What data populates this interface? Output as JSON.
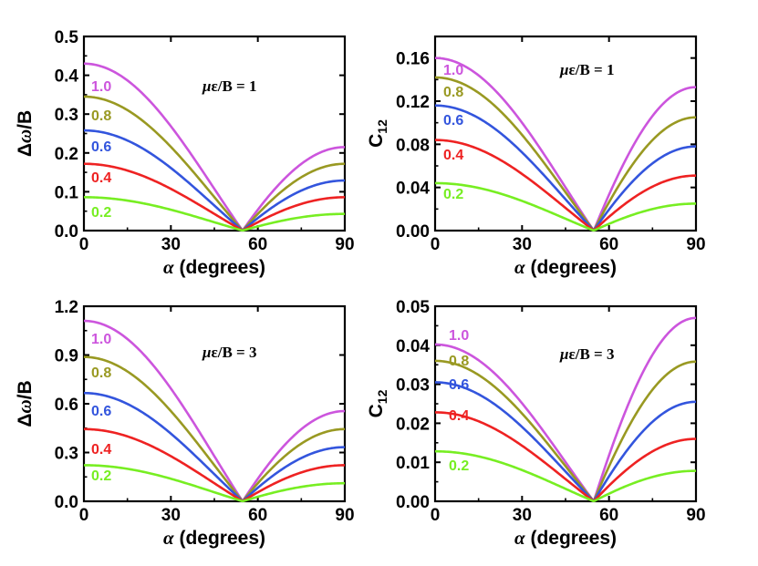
{
  "chart_data": [
    {
      "id": "top-left",
      "type": "line",
      "ylabel": "Δω/B",
      "xlabel_symbol": "α",
      "xlabel_text": " (degrees)",
      "annotation": "με/B = 1",
      "xlim": [
        0,
        90
      ],
      "ylim": [
        0,
        0.5
      ],
      "xticks": [
        "0",
        "30",
        "60",
        "90"
      ],
      "yticks": [
        "0.0",
        "0.1",
        "0.2",
        "0.3",
        "0.4",
        "0.5"
      ],
      "zero_x": 54.7,
      "series": [
        {
          "name": "1.0",
          "color": "#cc55dd",
          "start": 0.43,
          "end": 0.215
        },
        {
          "name": "0.8",
          "color": "#999922",
          "start": 0.345,
          "end": 0.172
        },
        {
          "name": "0.6",
          "color": "#3355dd",
          "start": 0.258,
          "end": 0.129
        },
        {
          "name": "0.4",
          "color": "#ee2222",
          "start": 0.172,
          "end": 0.086
        },
        {
          "name": "0.2",
          "color": "#77ee22",
          "start": 0.086,
          "end": 0.043
        }
      ]
    },
    {
      "id": "top-right",
      "type": "line",
      "ylabel": "C",
      "ylabel_sub": "12",
      "xlabel_symbol": "α",
      "xlabel_text": " (degrees)",
      "annotation": "με/B = 1",
      "xlim": [
        0,
        90
      ],
      "ylim": [
        0,
        0.18
      ],
      "xticks": [
        "0",
        "30",
        "60",
        "90"
      ],
      "yticks": [
        "0.00",
        "0.04",
        "0.08",
        "0.12",
        "0.16"
      ],
      "zero_x": 54.7,
      "series": [
        {
          "name": "1.0",
          "color": "#cc55dd",
          "start": 0.16,
          "end": 0.133
        },
        {
          "name": "0.8",
          "color": "#999922",
          "start": 0.142,
          "end": 0.105
        },
        {
          "name": "0.6",
          "color": "#3355dd",
          "start": 0.116,
          "end": 0.078
        },
        {
          "name": "0.4",
          "color": "#ee2222",
          "start": 0.084,
          "end": 0.051
        },
        {
          "name": "0.2",
          "color": "#77ee22",
          "start": 0.044,
          "end": 0.025
        }
      ]
    },
    {
      "id": "bottom-left",
      "type": "line",
      "ylabel": "Δω/B",
      "xlabel_symbol": "α",
      "xlabel_text": " (degrees)",
      "annotation": "με/B = 3",
      "xlim": [
        0,
        90
      ],
      "ylim": [
        0,
        1.2
      ],
      "xticks": [
        "0",
        "30",
        "60",
        "90"
      ],
      "yticks": [
        "0.0",
        "0.3",
        "0.6",
        "0.9",
        "1.2"
      ],
      "zero_x": 54.7,
      "series": [
        {
          "name": "1.0",
          "color": "#cc55dd",
          "start": 1.11,
          "end": 0.555
        },
        {
          "name": "0.8",
          "color": "#999922",
          "start": 0.888,
          "end": 0.444
        },
        {
          "name": "0.6",
          "color": "#3355dd",
          "start": 0.666,
          "end": 0.333
        },
        {
          "name": "0.4",
          "color": "#ee2222",
          "start": 0.444,
          "end": 0.222
        },
        {
          "name": "0.2",
          "color": "#77ee22",
          "start": 0.222,
          "end": 0.111
        }
      ]
    },
    {
      "id": "bottom-right",
      "type": "line",
      "ylabel": "C",
      "ylabel_sub": "12",
      "xlabel_symbol": "α",
      "xlabel_text": " (degrees)",
      "annotation": "με/B = 3",
      "xlim": [
        0,
        90
      ],
      "ylim": [
        0,
        0.05
      ],
      "xticks": [
        "0",
        "30",
        "60",
        "90"
      ],
      "yticks": [
        "0.00",
        "0.01",
        "0.02",
        "0.03",
        "0.04",
        "0.05"
      ],
      "zero_x": 54.7,
      "series": [
        {
          "name": "1.0",
          "color": "#cc55dd",
          "start": 0.0402,
          "end": 0.047
        },
        {
          "name": "0.8",
          "color": "#999922",
          "start": 0.036,
          "end": 0.0358
        },
        {
          "name": "0.6",
          "color": "#3355dd",
          "start": 0.0305,
          "end": 0.0255
        },
        {
          "name": "0.4",
          "color": "#ee2222",
          "start": 0.0228,
          "end": 0.016
        },
        {
          "name": "0.2",
          "color": "#77ee22",
          "start": 0.0128,
          "end": 0.0078
        }
      ]
    }
  ]
}
